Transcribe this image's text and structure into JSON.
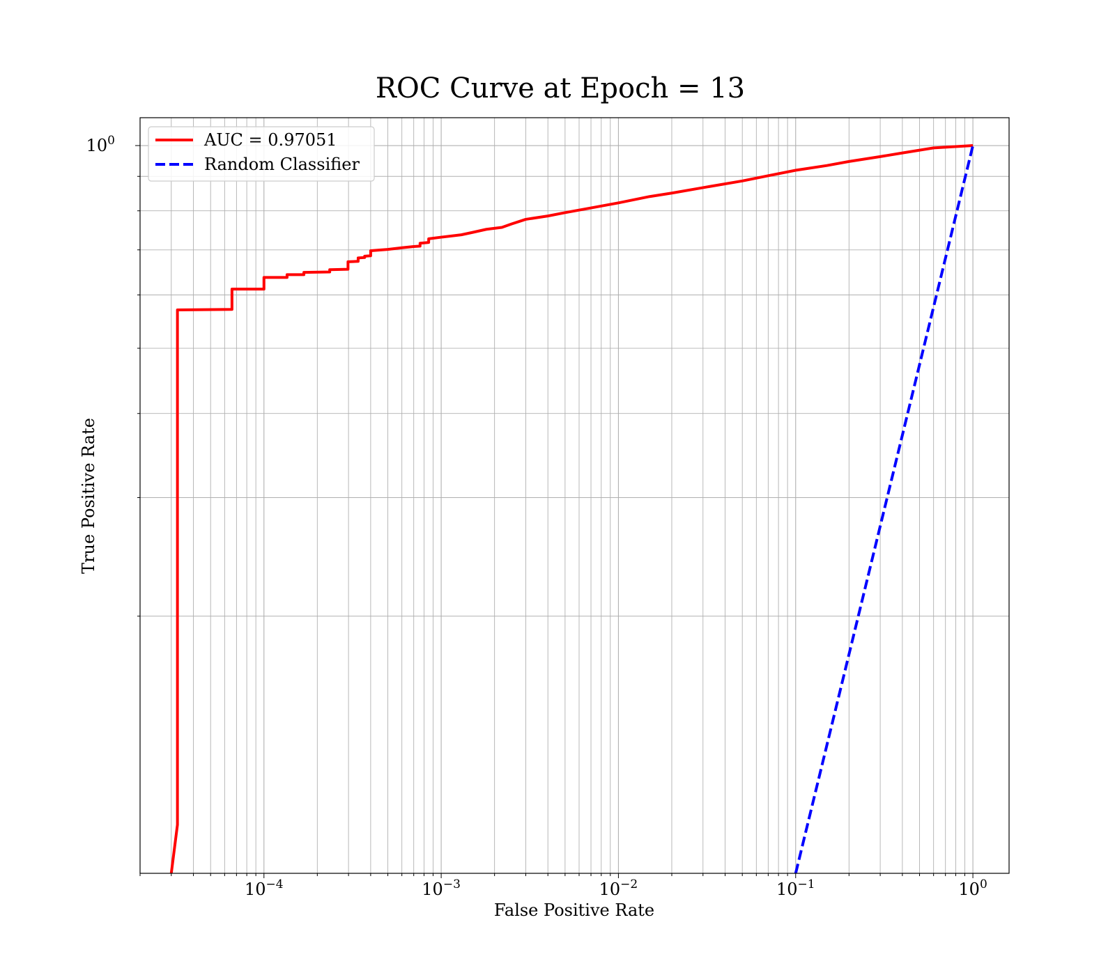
{
  "chart_data": {
    "type": "line",
    "title": "ROC Curve at Epoch = 13",
    "xlabel": "False Positive Rate",
    "ylabel": "True Positive Rate",
    "xscale": "log",
    "yscale": "log",
    "xlim": [
      2e-05,
      1.6
    ],
    "ylim": [
      0.083,
      1.1
    ],
    "grid": true,
    "grid_minor": true,
    "legend_position": "upper left",
    "x_ticks": [
      {
        "value": 0.0001,
        "base": "10",
        "exp": "−4"
      },
      {
        "value": 0.001,
        "base": "10",
        "exp": "−3"
      },
      {
        "value": 0.01,
        "base": "10",
        "exp": "−2"
      },
      {
        "value": 0.1,
        "base": "10",
        "exp": "−1"
      },
      {
        "value": 1,
        "base": "10",
        "exp": "0"
      }
    ],
    "y_ticks": [
      {
        "value": 1,
        "base": "10",
        "exp": "0"
      }
    ],
    "y_minor_ticks": [
      0.2,
      0.3,
      0.4,
      0.5,
      0.6,
      0.7,
      0.8,
      0.9
    ],
    "series": [
      {
        "name": "AUC = 0.97051",
        "color": "#ff0000",
        "style": "solid",
        "points": [
          [
            3e-05,
            0.083
          ],
          [
            3.25e-05,
            0.098
          ],
          [
            3.25e-05,
            0.57
          ],
          [
            6.6e-05,
            0.571
          ],
          [
            6.6e-05,
            0.612
          ],
          [
            0.0001,
            0.612
          ],
          [
            0.0001,
            0.637
          ],
          [
            0.000135,
            0.637
          ],
          [
            0.000135,
            0.643
          ],
          [
            0.000168,
            0.643
          ],
          [
            0.000168,
            0.648
          ],
          [
            0.000235,
            0.649
          ],
          [
            0.000235,
            0.654
          ],
          [
            0.000298,
            0.655
          ],
          [
            0.000298,
            0.672
          ],
          [
            0.00034,
            0.673
          ],
          [
            0.00034,
            0.681
          ],
          [
            0.00037,
            0.682
          ],
          [
            0.00037,
            0.685
          ],
          [
            0.0004,
            0.686
          ],
          [
            0.0004,
            0.698
          ],
          [
            0.0005,
            0.701
          ],
          [
            0.0006,
            0.705
          ],
          [
            0.0007,
            0.708
          ],
          [
            0.00076,
            0.709
          ],
          [
            0.00076,
            0.716
          ],
          [
            0.00085,
            0.718
          ],
          [
            0.00085,
            0.727
          ],
          [
            0.001,
            0.731
          ],
          [
            0.0013,
            0.737
          ],
          [
            0.0015,
            0.743
          ],
          [
            0.0018,
            0.751
          ],
          [
            0.0022,
            0.756
          ],
          [
            0.0025,
            0.765
          ],
          [
            0.003,
            0.777
          ],
          [
            0.004,
            0.786
          ],
          [
            0.005,
            0.795
          ],
          [
            0.007,
            0.808
          ],
          [
            0.01,
            0.822
          ],
          [
            0.015,
            0.84
          ],
          [
            0.02,
            0.85
          ],
          [
            0.03,
            0.866
          ],
          [
            0.05,
            0.886
          ],
          [
            0.07,
            0.902
          ],
          [
            0.1,
            0.919
          ],
          [
            0.15,
            0.934
          ],
          [
            0.2,
            0.947
          ],
          [
            0.3,
            0.963
          ],
          [
            0.4,
            0.975
          ],
          [
            0.6,
            0.992
          ],
          [
            1.0,
            1.0
          ]
        ]
      },
      {
        "name": "Random Classifier",
        "color": "#0000ff",
        "style": "dashed",
        "points": [
          [
            0.1,
            0.083
          ],
          [
            1.0,
            1.0
          ]
        ]
      }
    ]
  }
}
